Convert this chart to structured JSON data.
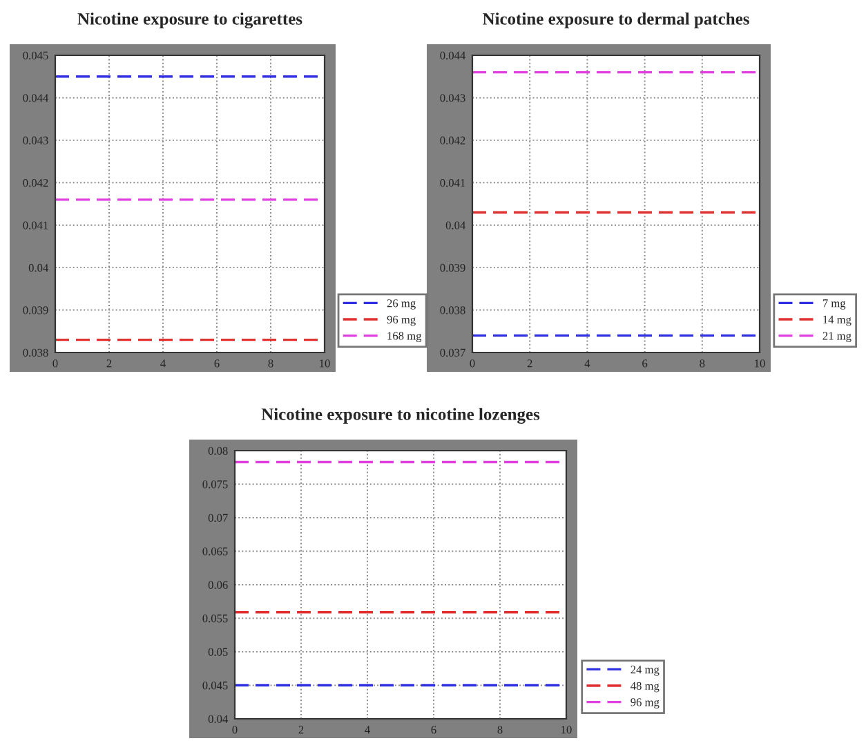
{
  "chart_data": [
    {
      "type": "line",
      "title": "Nicotine exposure to cigarettes",
      "ref_lines": [
        {
          "axis": "y",
          "value": 0.0445,
          "label": "26 mg",
          "color": "#3030e0",
          "line_style": "dashed"
        },
        {
          "axis": "y",
          "value": 0.0383,
          "label": "96 mg",
          "color": "#e03030",
          "line_style": "dashed"
        },
        {
          "axis": "y",
          "value": 0.0416,
          "label": "168 mg",
          "color": "#e040e0",
          "line_style": "dashed"
        }
      ],
      "xlim": [
        0,
        10
      ],
      "xticks": [
        0,
        2,
        4,
        6,
        8,
        10
      ],
      "ylim": [
        0.038,
        0.045
      ],
      "yticks": [
        0.038,
        0.039,
        0.04,
        0.041,
        0.042,
        0.043,
        0.044,
        0.045
      ],
      "grid": true,
      "legend": "right"
    },
    {
      "type": "line",
      "title": "Nicotine exposure to dermal patches",
      "ref_lines": [
        {
          "axis": "y",
          "value": 0.0374,
          "label": "7 mg",
          "color": "#3030e0",
          "line_style": "dashed"
        },
        {
          "axis": "y",
          "value": 0.0403,
          "label": "14 mg",
          "color": "#e03030",
          "line_style": "dashed"
        },
        {
          "axis": "y",
          "value": 0.0436,
          "label": "21 mg",
          "color": "#e040e0",
          "line_style": "dashed"
        }
      ],
      "xlim": [
        0,
        10
      ],
      "xticks": [
        0,
        2,
        4,
        6,
        8,
        10
      ],
      "ylim": [
        0.037,
        0.044
      ],
      "yticks": [
        0.037,
        0.038,
        0.039,
        0.04,
        0.041,
        0.042,
        0.043,
        0.044
      ],
      "grid": true,
      "legend": "right"
    },
    {
      "type": "line",
      "title": "Nicotine exposure to nicotine lozenges",
      "ref_lines": [
        {
          "axis": "y",
          "value": 0.045,
          "label": "24 mg",
          "color": "#3030e0",
          "line_style": "dashed"
        },
        {
          "axis": "y",
          "value": 0.0559,
          "label": "48 mg",
          "color": "#e03030",
          "line_style": "dashed"
        },
        {
          "axis": "y",
          "value": 0.0783,
          "label": "96 mg",
          "color": "#e040e0",
          "line_style": "dashed"
        }
      ],
      "xlim": [
        0,
        10
      ],
      "xticks": [
        0,
        2,
        4,
        6,
        8,
        10
      ],
      "ylim": [
        0.04,
        0.08
      ],
      "yticks": [
        0.04,
        0.045,
        0.05,
        0.055,
        0.06,
        0.065,
        0.07,
        0.075,
        0.08
      ],
      "grid": true,
      "legend": "right"
    }
  ]
}
